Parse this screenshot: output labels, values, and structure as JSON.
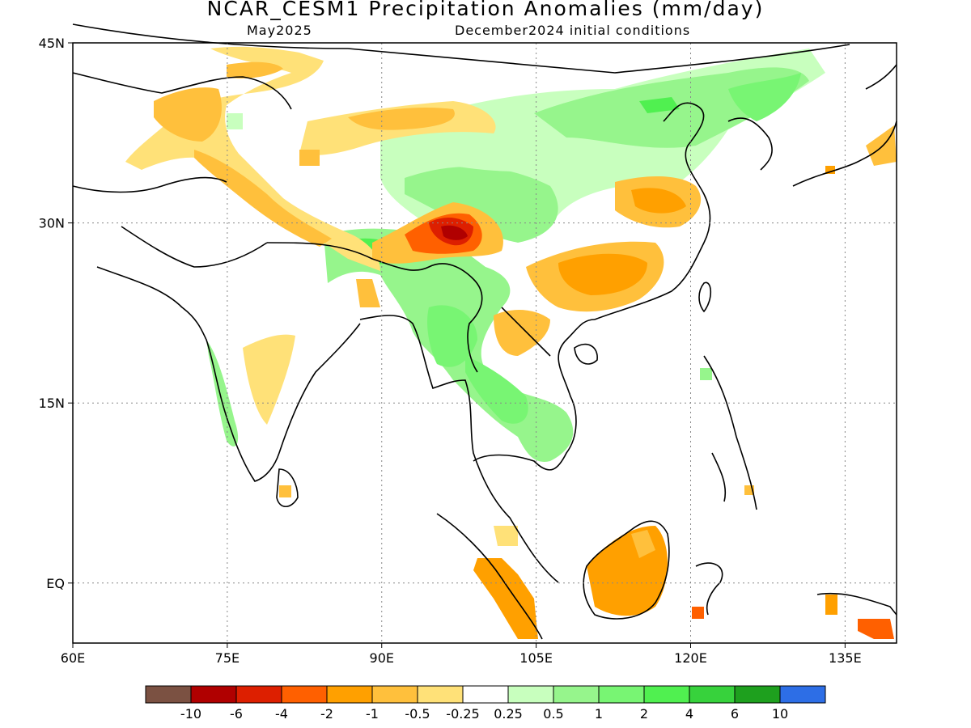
{
  "header": {
    "title": "NCAR_CESM1 Precipitation Anomalies (mm/day)",
    "target_month": "May2025",
    "init_conditions": "December2024 initial conditions"
  },
  "map": {
    "lon_range": [
      60,
      140
    ],
    "lat_range": [
      -5,
      45
    ],
    "lon_ticks": [
      "60E",
      "75E",
      "90E",
      "105E",
      "120E",
      "135E"
    ],
    "lat_ticks": [
      "45N",
      "30N",
      "15N",
      "EQ"
    ],
    "grid_style": "dotted"
  },
  "colorbar": {
    "colors": [
      "#7b5142",
      "#b00000",
      "#dd1f00",
      "#ff6000",
      "#ffa000",
      "#ffc03c",
      "#ffe178",
      "#ffffff",
      "#c8ffbe",
      "#96f58c",
      "#78f573",
      "#50f050",
      "#37d23c",
      "#1ea01e",
      "#2d6ee6"
    ],
    "labels": [
      "-10",
      "-6",
      "-4",
      "-2",
      "-1",
      "-0.5",
      "-0.25",
      "0.25",
      "0.5",
      "1",
      "2",
      "4",
      "6",
      "10"
    ]
  }
}
